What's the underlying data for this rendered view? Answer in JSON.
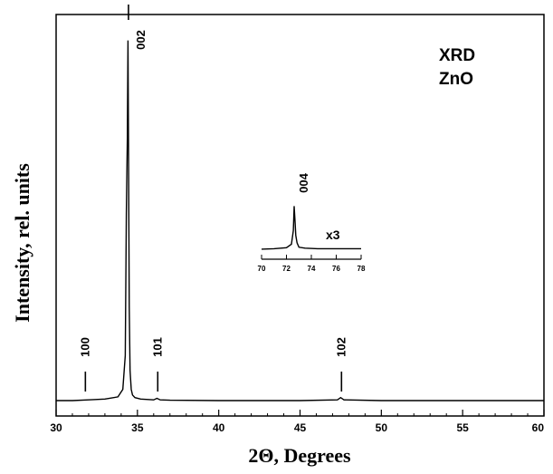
{
  "chart_data": {
    "type": "line",
    "title": "",
    "xlabel": "2Θ, Degrees",
    "ylabel": "Intensity, rel. units",
    "xlim": [
      30,
      60
    ],
    "x_ticks": [
      "30",
      "35",
      "40",
      "45",
      "50",
      "55",
      "60"
    ],
    "ylim": [
      0,
      1.0
    ],
    "grid": false,
    "annotation": [
      "XRD",
      "ZnO"
    ],
    "series": [
      {
        "x": [
          30.0,
          31.0,
          32.0,
          33.0,
          33.8,
          34.1,
          34.25,
          34.32,
          34.38,
          34.42,
          34.46,
          34.5,
          34.55,
          34.62,
          34.7,
          34.85,
          35.2,
          36.0,
          36.2,
          36.4,
          37.0,
          40.0,
          45.0,
          47.3,
          47.5,
          47.7,
          50.0,
          55.0,
          60.0
        ],
        "y": [
          0.0,
          0.0,
          0.002,
          0.004,
          0.01,
          0.03,
          0.12,
          0.5,
          0.7,
          0.96,
          0.62,
          0.25,
          0.08,
          0.03,
          0.015,
          0.008,
          0.004,
          0.002,
          0.006,
          0.002,
          0.001,
          0.0,
          0.0,
          0.002,
          0.008,
          0.002,
          0.0,
          0.0,
          0.0
        ]
      }
    ],
    "peaks": [
      {
        "label": "100",
        "x": 31.8
      },
      {
        "label": "002",
        "x": 34.45
      },
      {
        "label": "101",
        "x": 36.25
      },
      {
        "label": "102",
        "x": 47.55
      }
    ],
    "inset": {
      "label": "004",
      "scale_note": "x3",
      "xlim": [
        70,
        78
      ],
      "x_ticks": [
        "70",
        "72",
        "74",
        "76",
        "78"
      ],
      "series": {
        "x": [
          70.0,
          71.0,
          72.0,
          72.4,
          72.55,
          72.62,
          72.7,
          72.75,
          72.85,
          73.0,
          73.5,
          74.5,
          76.0,
          78.0
        ],
        "y": [
          0.02,
          0.03,
          0.05,
          0.12,
          0.4,
          0.9,
          0.55,
          0.3,
          0.15,
          0.06,
          0.04,
          0.03,
          0.03,
          0.03
        ]
      }
    }
  }
}
